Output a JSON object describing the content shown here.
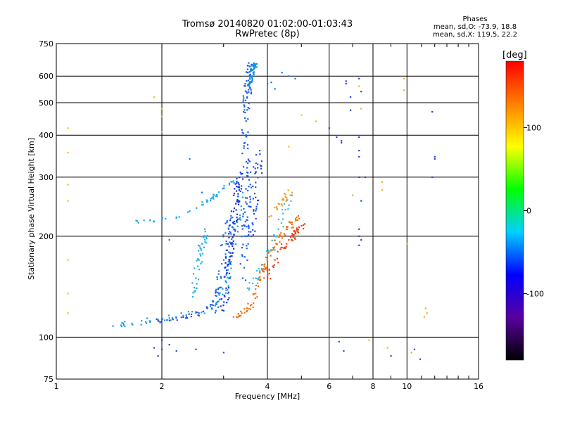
{
  "header": {
    "title": "Tromsø 20140820 01:02:00-01:03:43",
    "subtitle": "RwPretec (8p)"
  },
  "phase_stats": {
    "heading": "Phases",
    "line_o": "mean, sd,O: -73.9, 18.8",
    "line_x": "mean, sd,X: 119.5, 22.2"
  },
  "colors": {
    "grid": "#000000",
    "o_mode": "#1560e8",
    "x_mode": "#f07010",
    "colorbar_stops": [
      "#000000",
      "#5a00a0",
      "#0000ff",
      "#00d0ff",
      "#00ff00",
      "#ffff00",
      "#ff8000",
      "#ff0000"
    ]
  },
  "chart_data": {
    "type": "scatter",
    "xlabel": "Frequency [MHz]",
    "ylabel": "Stationary phase Virtual Height [km]",
    "x_scale": "log",
    "y_scale": "log",
    "xlim": [
      1,
      16
    ],
    "ylim": [
      75,
      750
    ],
    "x_ticks": [
      1,
      2,
      4,
      6,
      8,
      10,
      16
    ],
    "x_minor_ticks": [
      3,
      5,
      7,
      9,
      11,
      12,
      13,
      14,
      15
    ],
    "y_ticks": [
      75,
      100,
      200,
      300,
      400,
      500,
      600,
      750
    ],
    "grid": true,
    "colorbar": {
      "label": "[deg]",
      "range": [
        -180,
        180
      ],
      "ticks": [
        100,
        0,
        -100
      ]
    },
    "series": [
      {
        "traces": [
          {
            "pts": [
              [
                1.45,
                108
              ],
              [
                1.55,
                110
              ],
              [
                1.65,
                109
              ],
              [
                1.75,
                112
              ],
              [
                1.85,
                111
              ],
              [
                1.95,
                113
              ],
              [
                2.1,
                114
              ],
              [
                2.3,
                116
              ],
              [
                2.5,
                118
              ],
              [
                2.7,
                122
              ],
              [
                2.9,
                128
              ],
              [
                3.05,
                138
              ],
              [
                3.1,
                150
              ],
              [
                3.15,
                168
              ],
              [
                3.2,
                190
              ],
              [
                3.3,
                225
              ],
              [
                3.4,
                270
              ]
            ],
            "color": "#20a0e0",
            "jitter": 0.04,
            "n": 70
          },
          {
            "pts": [
              [
                1.7,
                222
              ],
              [
                1.85,
                223
              ],
              [
                2.0,
                224
              ],
              [
                2.2,
                228
              ],
              [
                2.4,
                238
              ],
              [
                2.6,
                248
              ],
              [
                2.8,
                262
              ],
              [
                3.0,
                278
              ],
              [
                3.2,
                292
              ]
            ],
            "color": "#18a8e8",
            "jitter": 0.025,
            "n": 35
          },
          {
            "pts": [
              [
                1.95,
                112
              ],
              [
                2.15,
                113
              ],
              [
                2.35,
                115
              ],
              [
                2.55,
                118
              ],
              [
                2.75,
                125
              ],
              [
                2.9,
                140
              ]
            ],
            "color": "#2a55e0",
            "jitter": 0.03,
            "n": 30
          },
          {
            "pts": [
              [
                2.45,
                132
              ],
              [
                2.5,
                150
              ],
              [
                2.55,
                170
              ],
              [
                2.6,
                190
              ],
              [
                2.65,
                210
              ]
            ],
            "color": "#20b0e8",
            "jitter": 0.05,
            "n": 40
          },
          {
            "pts": [
              [
                2.85,
                120
              ],
              [
                2.9,
                135
              ],
              [
                2.95,
                150
              ],
              [
                3.0,
                170
              ],
              [
                3.05,
                190
              ],
              [
                3.1,
                210
              ],
              [
                3.15,
                230
              ]
            ],
            "color": "#1c70f0",
            "jitter": 0.06,
            "n": 50
          },
          {
            "pts": [
              [
                3.0,
                120
              ],
              [
                3.05,
                140
              ],
              [
                3.1,
                165
              ],
              [
                3.15,
                190
              ],
              [
                3.2,
                220
              ],
              [
                3.25,
                250
              ],
              [
                3.3,
                280
              ],
              [
                3.35,
                310
              ]
            ],
            "color": "#1535e0",
            "jitter": 0.05,
            "n": 90
          },
          {
            "pts": [
              [
                3.4,
                150
              ],
              [
                3.45,
                200
              ],
              [
                3.5,
                260
              ],
              [
                3.5,
                320
              ],
              [
                3.45,
                380
              ],
              [
                3.45,
                450
              ],
              [
                3.5,
                520
              ],
              [
                3.55,
                600
              ],
              [
                3.6,
                650
              ]
            ],
            "color": "#1a5ff0",
            "jitter": 0.05,
            "n": 120
          },
          {
            "pts": [
              [
                3.55,
                560
              ],
              [
                3.6,
                600
              ],
              [
                3.65,
                640
              ],
              [
                3.7,
                650
              ]
            ],
            "color": "#1090e8",
            "jitter": 0.03,
            "n": 45
          },
          {
            "pts": [
              [
                3.6,
                200
              ],
              [
                3.65,
                240
              ],
              [
                3.7,
                280
              ],
              [
                3.75,
                320
              ],
              [
                3.8,
                360
              ]
            ],
            "color": "#2050e8",
            "jitter": 0.06,
            "n": 40
          },
          {
            "pts": [
              [
                3.55,
                140
              ],
              [
                3.7,
                150
              ],
              [
                3.85,
                160
              ],
              [
                4.0,
                175
              ],
              [
                4.15,
                185
              ],
              [
                4.3,
                210
              ],
              [
                4.5,
                240
              ],
              [
                4.7,
                265
              ]
            ],
            "color": "#30c0f0",
            "jitter": 0.05,
            "n": 40
          }
        ]
      },
      {
        "traces": [
          {
            "pts": [
              [
                3.2,
                115
              ],
              [
                3.35,
                116
              ],
              [
                3.5,
                120
              ],
              [
                3.6,
                125
              ],
              [
                3.7,
                135
              ],
              [
                3.8,
                148
              ],
              [
                3.9,
                160
              ],
              [
                4.0,
                172
              ],
              [
                4.1,
                182
              ],
              [
                4.25,
                190
              ],
              [
                4.4,
                200
              ],
              [
                4.55,
                210
              ],
              [
                4.7,
                220
              ],
              [
                4.9,
                230
              ]
            ],
            "color": "#f07010",
            "jitter": 0.04,
            "n": 75
          },
          {
            "pts": [
              [
                4.0,
                150
              ],
              [
                4.2,
                170
              ],
              [
                4.4,
                185
              ],
              [
                4.6,
                195
              ],
              [
                4.8,
                205
              ],
              [
                5.0,
                215
              ]
            ],
            "color": "#f04010",
            "jitter": 0.05,
            "n": 45
          },
          {
            "pts": [
              [
                4.1,
                230
              ],
              [
                4.3,
                250
              ],
              [
                4.5,
                262
              ],
              [
                4.7,
                270
              ]
            ],
            "color": "#f0a020",
            "jitter": 0.05,
            "n": 20
          }
        ]
      },
      {
        "traces": [
          {
            "pts": [
              [
                1.08,
                420
              ],
              [
                1.08,
                355
              ],
              [
                1.08,
                285
              ],
              [
                1.08,
                255
              ],
              [
                1.08,
                170
              ],
              [
                1.08,
                135
              ],
              [
                1.08,
                118
              ],
              [
                1.9,
                520
              ],
              [
                2.0,
                480
              ],
              [
                2.0,
                455
              ],
              [
                2.0,
                410
              ],
              [
                5.0,
                460
              ],
              [
                5.5,
                440
              ],
              [
                4.6,
                370
              ]
            ],
            "color": "#f0c020",
            "jitter": 0,
            "n": 0
          },
          {
            "pts": [
              [
                6.0,
                420
              ],
              [
                6.3,
                395
              ],
              [
                6.5,
                385
              ],
              [
                6.5,
                380
              ],
              [
                6.9,
                520
              ],
              [
                6.9,
                475
              ],
              [
                7.3,
                395
              ],
              [
                7.3,
                360
              ],
              [
                7.3,
                345
              ],
              [
                7.3,
                300
              ],
              [
                7.6,
                300
              ],
              [
                7.4,
                255
              ],
              [
                7.3,
                210
              ],
              [
                7.3,
                200
              ],
              [
                7.4,
                195
              ],
              [
                7.3,
                188
              ],
              [
                6.7,
                580
              ],
              [
                6.7,
                570
              ],
              [
                7.3,
                590
              ],
              [
                7.4,
                540
              ],
              [
                11.8,
                470
              ],
              [
                11.8,
                300
              ],
              [
                12.0,
                345
              ],
              [
                12.0,
                340
              ]
            ],
            "color": "#3040d0",
            "jitter": 0,
            "n": 0
          },
          {
            "pts": [
              [
                7.4,
                480
              ],
              [
                7.3,
                560
              ],
              [
                7.0,
                265
              ],
              [
                8.5,
                290
              ],
              [
                8.5,
                275
              ],
              [
                9.8,
                590
              ],
              [
                9.8,
                545
              ],
              [
                10.0,
                190
              ],
              [
                11.3,
                122
              ],
              [
                11.4,
                118
              ],
              [
                11.2,
                115
              ],
              [
                8.8,
                93
              ],
              [
                7.8,
                98
              ],
              [
                10.3,
                90
              ]
            ],
            "color": "#f0b020",
            "jitter": 0,
            "n": 0
          },
          {
            "pts": [
              [
                2.0,
                92
              ],
              [
                2.1,
                95
              ],
              [
                2.2,
                91
              ],
              [
                2.0,
                98
              ],
              [
                1.95,
                88
              ],
              [
                1.9,
                93
              ],
              [
                2.5,
                92
              ],
              [
                3.0,
                90
              ],
              [
                6.4,
                97
              ],
              [
                6.6,
                91
              ],
              [
                9.0,
                88
              ],
              [
                10.5,
                92
              ],
              [
                10.9,
                86
              ]
            ],
            "color": "#2050e0",
            "jitter": 0,
            "n": 0
          },
          {
            "pts": [
              [
                2.4,
                340
              ],
              [
                2.1,
                195
              ],
              [
                2.6,
                270
              ],
              [
                4.6,
                600
              ],
              [
                4.8,
                590
              ],
              [
                4.4,
                615
              ],
              [
                4.0,
                570
              ],
              [
                4.2,
                550
              ],
              [
                4.1,
                575
              ]
            ],
            "color": "#2070f0",
            "jitter": 0,
            "n": 0
          }
        ]
      }
    ]
  }
}
